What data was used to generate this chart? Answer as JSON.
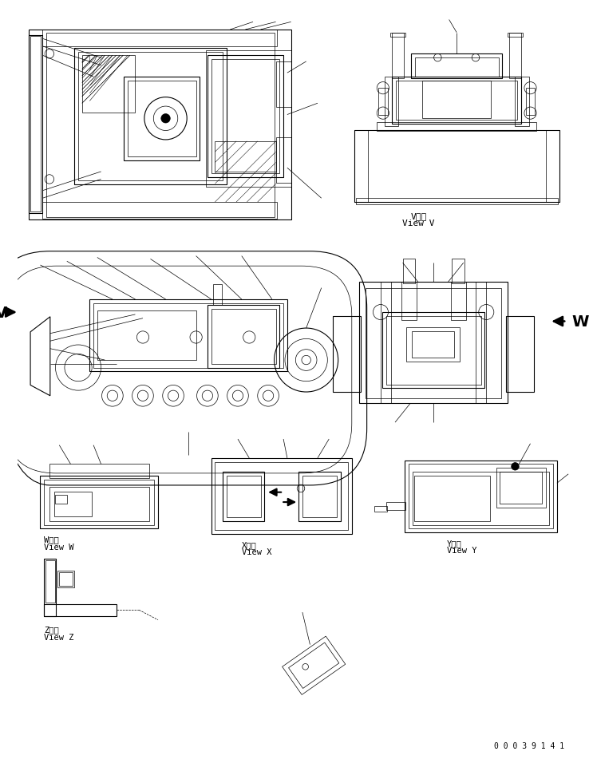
{
  "bg_color": "#ffffff",
  "line_color": "#000000",
  "fig_width": 7.38,
  "fig_height": 9.62,
  "dpi": 100,
  "labels": {
    "view_v_kanji": "V　視",
    "view_v": "View V",
    "view_w_kanji": "W　視",
    "view_w": "View W",
    "view_x_kanji": "X　視",
    "view_x": "View X",
    "view_y_kanji": "Y　視",
    "view_y": "View Y",
    "view_z_kanji": "Z　視",
    "view_z": "View Z",
    "part_number": "0 0 0 3 9 1 4 1",
    "V_label": "V",
    "W_label": "W"
  },
  "font_size": 7.5,
  "label_font_size": 13,
  "part_number_font_size": 7
}
